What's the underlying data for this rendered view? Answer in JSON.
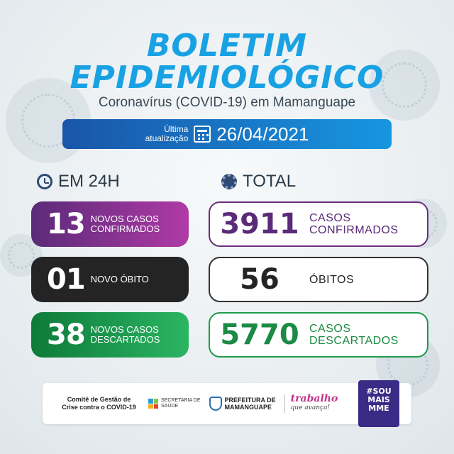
{
  "header": {
    "title_line1": "BOLETIM",
    "title_line2": "EPIDEMIOLÓGICO",
    "subtitle": "Coronavírus (COVID-19) em Mamanguape"
  },
  "update": {
    "label_line1": "Última",
    "label_line2": "atualização",
    "date": "26/04/2021",
    "icon": "calendar-icon"
  },
  "sections": {
    "daily_title": "EM 24H",
    "daily_icon": "clock-icon",
    "total_title": "TOTAL",
    "total_icon": "virus-icon"
  },
  "daily": [
    {
      "value": "13",
      "line1": "NOVOS CASOS",
      "line2": "CONFIRMADOS",
      "color": "#8a2f8c"
    },
    {
      "value": "01",
      "line1": "NOVO ÓBITO",
      "line2": "",
      "color": "#242424"
    },
    {
      "value": "38",
      "line1": "NOVOS CASOS",
      "line2": "DESCARTADOS",
      "color": "#1b9a4e"
    }
  ],
  "total": [
    {
      "value": "3911",
      "line1": "CASOS",
      "line2": "CONFIRMADOS",
      "color": "#5a2b78"
    },
    {
      "value": "56",
      "line1": "ÓBITOS",
      "line2": "",
      "color": "#242424"
    },
    {
      "value": "5770",
      "line1": "CASOS",
      "line2": "DESCARTADOS",
      "color": "#1b8a44"
    }
  ],
  "footer": {
    "comite_line1": "Comitê de Gestão de",
    "comite_line2": "Crise contra o COVID-19",
    "secretaria_line1": "SECRETARIA DE",
    "secretaria_line2": "SAÚDE",
    "prefeitura_line1": "PREFEITURA DE",
    "prefeitura_line2": "MAMANGUAPE",
    "trabalho": "trabalho",
    "trabalho_sub": "que avança!",
    "badge_line1": "#SOU",
    "badge_line2": "MAIS",
    "badge_line3": "MME"
  },
  "colors": {
    "title": "#19a2e3",
    "update_bar_start": "#1a55a8",
    "update_bar_end": "#1796e0"
  }
}
